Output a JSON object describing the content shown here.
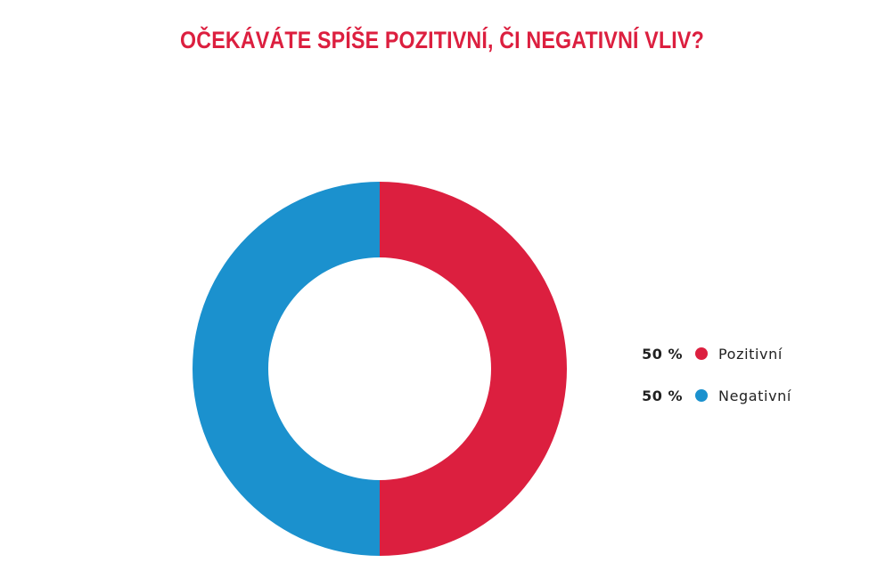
{
  "chart_data": {
    "type": "pie",
    "subtype": "donut",
    "title": "OČEKÁVÁTE SPÍŠE POZITIVNÍ, ČI NEGATIVNÍ VLIV?",
    "unit": "%",
    "legend_position": "right",
    "slices": [
      {
        "label": "Pozitivní",
        "value": 50,
        "display": "50 %",
        "color": "#dc1f3f"
      },
      {
        "label": "Negativní",
        "value": 50,
        "display": "50 %",
        "color": "#1b91ce"
      }
    ]
  },
  "colors": {
    "title": "#dc1f3f",
    "text": "#222222",
    "background": "#ffffff"
  }
}
